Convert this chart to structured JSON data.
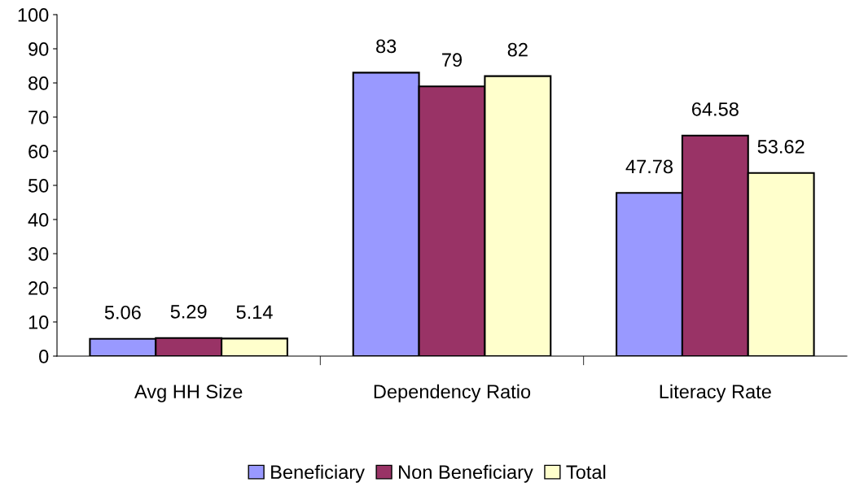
{
  "chart_data": {
    "type": "bar",
    "categories": [
      "Avg HH Size",
      "Dependency Ratio",
      "Literacy Rate"
    ],
    "series": [
      {
        "name": "Beneficiary",
        "color": "#9999ff",
        "values": [
          5.06,
          83,
          47.78
        ]
      },
      {
        "name": "Non Beneficiary",
        "color": "#993366",
        "values": [
          5.29,
          79,
          64.58
        ]
      },
      {
        "name": "Total",
        "color": "#ffffcc",
        "values": [
          5.14,
          82,
          53.62
        ]
      }
    ],
    "ylim": [
      0,
      100
    ],
    "yticks": [
      0,
      10,
      20,
      30,
      40,
      50,
      60,
      70,
      80,
      90,
      100
    ],
    "data_labels": true,
    "legend": "bottom",
    "grid": false
  }
}
